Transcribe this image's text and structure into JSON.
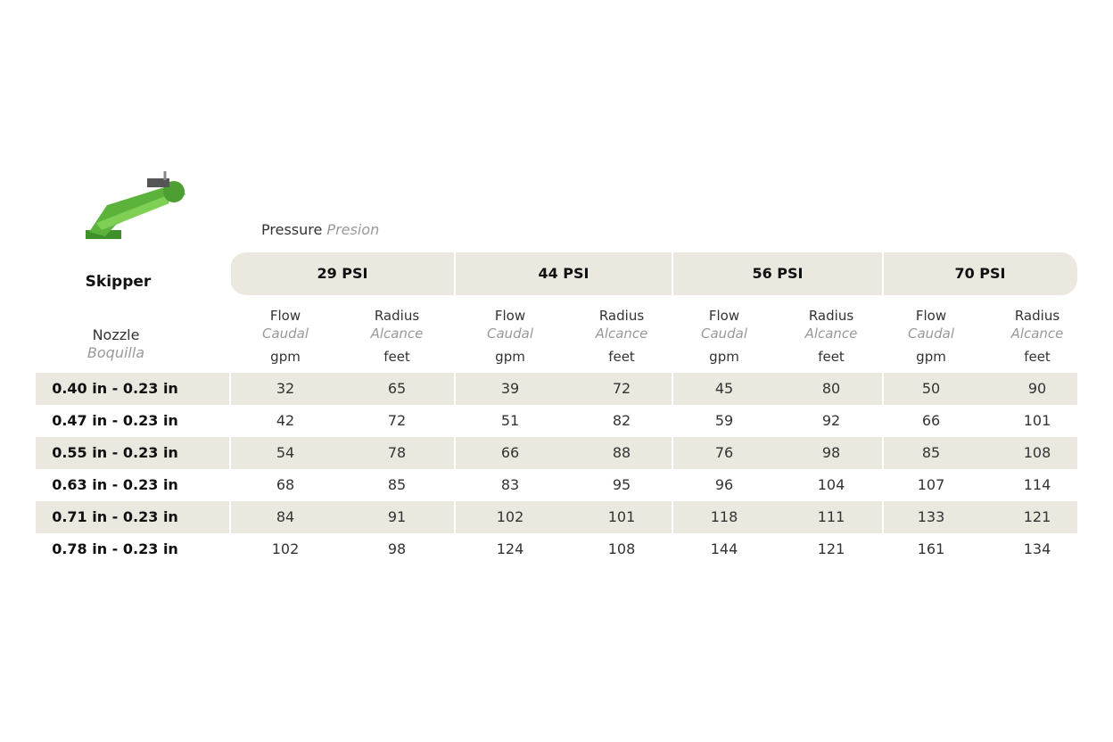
{
  "product": "Skipper",
  "pressure_label": {
    "en": "Pressure",
    "es": "Presion"
  },
  "nozzle_label": {
    "en": "Nozzle",
    "es": "Boquilla"
  },
  "columns": {
    "flow": {
      "en": "Flow",
      "es": "Caudal",
      "unit": "gpm"
    },
    "radius": {
      "en": "Radius",
      "es": "Alcance",
      "unit": "feet"
    }
  },
  "pressures": [
    "29 PSI",
    "44 PSI",
    "56 PSI",
    "70 PSI"
  ],
  "table": {
    "rows": [
      [
        "0.40 in - 0.23 in",
        32,
        65,
        39,
        72,
        45,
        80,
        50,
        90
      ],
      [
        "0.47 in - 0.23 in",
        42,
        72,
        51,
        82,
        59,
        92,
        66,
        101
      ],
      [
        "0.55 in - 0.23 in",
        54,
        78,
        66,
        88,
        76,
        98,
        85,
        108
      ],
      [
        "0.63 in - 0.23 in",
        68,
        85,
        83,
        95,
        96,
        104,
        107,
        114
      ],
      [
        "0.71 in - 0.23 in",
        84,
        91,
        102,
        101,
        118,
        111,
        133,
        121
      ],
      [
        "0.78 in - 0.23 in",
        102,
        98,
        124,
        108,
        144,
        121,
        161,
        134
      ]
    ]
  }
}
